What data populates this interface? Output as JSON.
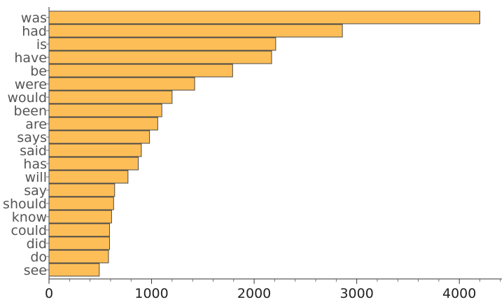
{
  "chart_data": {
    "type": "bar",
    "orientation": "horizontal",
    "categories": [
      "was",
      "had",
      "is",
      "have",
      "be",
      "were",
      "would",
      "been",
      "are",
      "says",
      "said",
      "has",
      "will",
      "say",
      "should",
      "know",
      "could",
      "did",
      "do",
      "see"
    ],
    "values": [
      4200,
      2860,
      2210,
      2170,
      1790,
      1420,
      1200,
      1100,
      1060,
      980,
      900,
      870,
      770,
      640,
      630,
      610,
      590,
      590,
      580,
      490
    ],
    "xlim": [
      0,
      4400
    ],
    "x_ticks": [
      0,
      1000,
      2000,
      3000,
      4000
    ],
    "x_tick_labels": [
      "0",
      "1000",
      "2000",
      "3000",
      "4000"
    ],
    "x_minor_step": 200,
    "title": "",
    "xlabel": "",
    "ylabel": "",
    "grid": false,
    "bar_color": "#FDBE57",
    "bar_edge_color": "#4a4a4a"
  }
}
